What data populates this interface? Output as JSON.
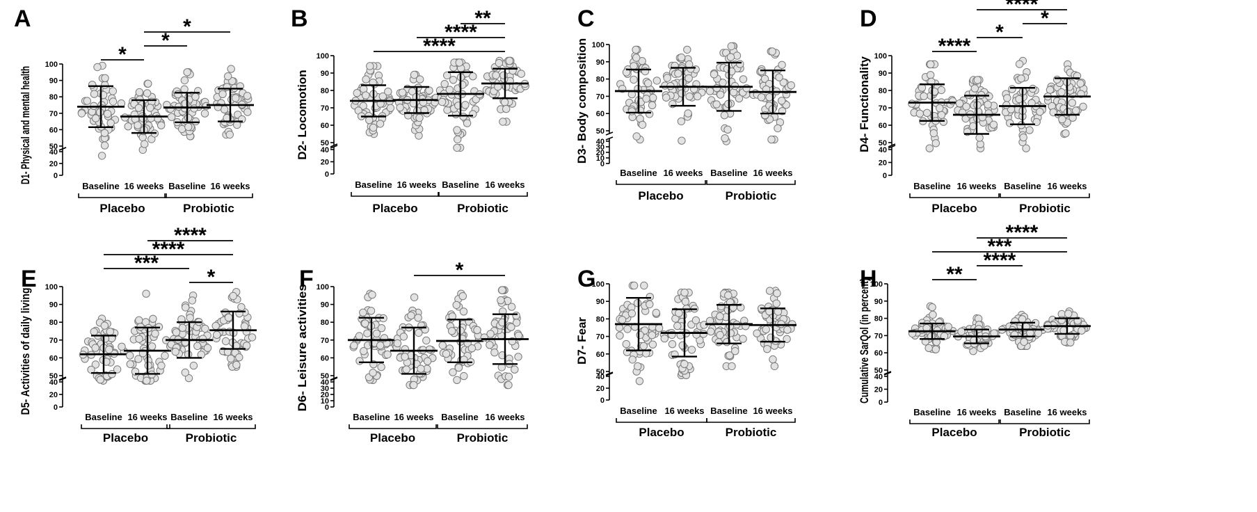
{
  "figure": {
    "groups": [
      "Placebo",
      "Probiotic"
    ],
    "timepoints": [
      "Baseline",
      "16 weeks"
    ]
  },
  "chart_data": [
    {
      "panel": "A",
      "type": "scatter",
      "ylabel": "D1- Physical and mental health",
      "yticks_low": [
        0,
        20,
        40
      ],
      "yticks_high": [
        50,
        60,
        70,
        80,
        90,
        100
      ],
      "ylim": [
        0,
        100
      ],
      "columns": [
        {
          "name": "Baseline",
          "group": "Placebo",
          "mean": 74,
          "sd": 12.5,
          "min": 33,
          "max": 99
        },
        {
          "name": "16 weeks",
          "group": "Placebo",
          "mean": 68,
          "sd": 10,
          "min": 43,
          "max": 88
        },
        {
          "name": "Baseline",
          "group": "Probiotic",
          "mean": 73.5,
          "sd": 9,
          "min": 56,
          "max": 95
        },
        {
          "name": "16 weeks",
          "group": "Probiotic",
          "mean": 75,
          "sd": 10,
          "min": 57,
          "max": 97
        }
      ],
      "significance": [
        {
          "from": 0,
          "to": 1,
          "label": "*"
        },
        {
          "from": 1,
          "to": 2,
          "label": "*"
        },
        {
          "from": 1,
          "to": 3,
          "label": "*"
        }
      ]
    },
    {
      "panel": "B",
      "type": "scatter",
      "ylabel": "D2- Locomotion",
      "yticks_low": [
        0,
        20,
        40
      ],
      "yticks_high": [
        50,
        60,
        70,
        80,
        90,
        100
      ],
      "ylim": [
        0,
        100
      ],
      "columns": [
        {
          "name": "Baseline",
          "group": "Placebo",
          "mean": 74,
          "sd": 9,
          "min": 55,
          "max": 94
        },
        {
          "name": "16 weeks",
          "group": "Placebo",
          "mean": 74.5,
          "sd": 7.5,
          "min": 54,
          "max": 89
        },
        {
          "name": "Baseline",
          "group": "Probiotic",
          "mean": 78,
          "sd": 12.5,
          "min": 43,
          "max": 96
        },
        {
          "name": "16 weeks",
          "group": "Probiotic",
          "mean": 84,
          "sd": 8.5,
          "min": 62,
          "max": 97
        }
      ],
      "significance": [
        {
          "from": 0,
          "to": 3,
          "label": "****",
          "thin": true
        },
        {
          "from": 1,
          "to": 3,
          "label": "****"
        },
        {
          "from": 2,
          "to": 3,
          "label": "**"
        }
      ]
    },
    {
      "panel": "C",
      "type": "scatter",
      "ylabel": "D3- Body composition",
      "yticks_low": [
        0,
        10,
        20,
        30,
        40
      ],
      "yticks_high": [
        50,
        60,
        70,
        80,
        90,
        100
      ],
      "ylim": [
        0,
        100
      ],
      "columns": [
        {
          "name": "Baseline",
          "group": "Placebo",
          "mean": 73,
          "sd": 12.5,
          "min": 43,
          "max": 97
        },
        {
          "name": "16 weeks",
          "group": "Placebo",
          "mean": 75.5,
          "sd": 11,
          "min": 41,
          "max": 97
        },
        {
          "name": "Baseline",
          "group": "Probiotic",
          "mean": 75.5,
          "sd": 14,
          "min": 40,
          "max": 99
        },
        {
          "name": "16 weeks",
          "group": "Probiotic",
          "mean": 72.5,
          "sd": 12.5,
          "min": 43,
          "max": 96
        }
      ],
      "significance": []
    },
    {
      "panel": "D",
      "type": "scatter",
      "ylabel": "D4- Functionality",
      "yticks_low": [
        0,
        20,
        40
      ],
      "yticks_high": [
        50,
        60,
        70,
        80,
        90,
        100
      ],
      "ylim": [
        0,
        100
      ],
      "columns": [
        {
          "name": "Baseline",
          "group": "Placebo",
          "mean": 73,
          "sd": 10.5,
          "min": 42,
          "max": 95
        },
        {
          "name": "16 weeks",
          "group": "Placebo",
          "mean": 66,
          "sd": 11,
          "min": 42,
          "max": 86
        },
        {
          "name": "Baseline",
          "group": "Probiotic",
          "mean": 71,
          "sd": 10.5,
          "min": 42,
          "max": 97
        },
        {
          "name": "16 weeks",
          "group": "Probiotic",
          "mean": 76.5,
          "sd": 10.5,
          "min": 55,
          "max": 95
        }
      ],
      "significance": [
        {
          "from": 0,
          "to": 1,
          "label": "****"
        },
        {
          "from": 1,
          "to": 2,
          "label": "*"
        },
        {
          "from": 2,
          "to": 3,
          "label": "*"
        },
        {
          "from": 1,
          "to": 3,
          "label": "****"
        }
      ]
    },
    {
      "panel": "E",
      "type": "scatter",
      "ylabel": "D5- Activities of daily living",
      "yticks_low": [
        0,
        20,
        40
      ],
      "yticks_high": [
        50,
        60,
        70,
        80,
        90,
        100
      ],
      "ylim": [
        0,
        100
      ],
      "columns": [
        {
          "name": "Baseline",
          "group": "Placebo",
          "mean": 62,
          "sd": 10.5,
          "min": 42,
          "max": 82
        },
        {
          "name": "16 weeks",
          "group": "Placebo",
          "mean": 64,
          "sd": 13,
          "min": 42,
          "max": 96
        },
        {
          "name": "Baseline",
          "group": "Probiotic",
          "mean": 70,
          "sd": 10,
          "min": 46,
          "max": 95
        },
        {
          "name": "16 weeks",
          "group": "Probiotic",
          "mean": 75.5,
          "sd": 10.5,
          "min": 55,
          "max": 97
        }
      ],
      "significance": [
        {
          "from": 2,
          "to": 3,
          "label": "*",
          "note": "shown between 16 weeks Placebo and Baseline Probiotic"
        },
        {
          "from": 0,
          "to": 2,
          "label": "***"
        },
        {
          "from": 0,
          "to": 3,
          "label": "****"
        },
        {
          "from": 1,
          "to": 3,
          "label": "****"
        }
      ]
    },
    {
      "panel": "F",
      "type": "scatter",
      "ylabel": "D6- Leisure activities",
      "yticks_low": [
        0,
        10,
        20,
        30,
        40
      ],
      "yticks_high": [
        50,
        60,
        70,
        80,
        90,
        100
      ],
      "ylim": [
        0,
        100
      ],
      "columns": [
        {
          "name": "Baseline",
          "group": "Placebo",
          "mean": 70,
          "sd": 12.5,
          "min": 43,
          "max": 96
        },
        {
          "name": "16 weeks",
          "group": "Placebo",
          "mean": 64,
          "sd": 13,
          "min": 35,
          "max": 94
        },
        {
          "name": "Baseline",
          "group": "Probiotic",
          "mean": 69.5,
          "sd": 12,
          "min": 43,
          "max": 96
        },
        {
          "name": "16 weeks",
          "group": "Probiotic",
          "mean": 70.5,
          "sd": 14,
          "min": 35,
          "max": 98
        }
      ],
      "significance": [
        {
          "from": 1,
          "to": 3,
          "label": "*"
        }
      ]
    },
    {
      "panel": "G",
      "type": "scatter",
      "ylabel": "D7- Fear",
      "yticks_low": [
        0,
        20,
        40
      ],
      "yticks_high": [
        50,
        60,
        70,
        80,
        90,
        100
      ],
      "ylim": [
        0,
        100
      ],
      "columns": [
        {
          "name": "Baseline",
          "group": "Placebo",
          "mean": 77,
          "sd": 15,
          "min": 32,
          "max": 99
        },
        {
          "name": "16 weeks",
          "group": "Placebo",
          "mean": 72,
          "sd": 13.5,
          "min": 42,
          "max": 95
        },
        {
          "name": "Baseline",
          "group": "Probiotic",
          "mean": 77,
          "sd": 11,
          "min": 53,
          "max": 95
        },
        {
          "name": "16 weeks",
          "group": "Probiotic",
          "mean": 76.5,
          "sd": 9.5,
          "min": 53,
          "max": 96
        }
      ],
      "significance": []
    },
    {
      "panel": "H",
      "type": "scatter",
      "ylabel": "Cumulative SarQol (in percent)",
      "yticks_low": [
        0,
        20,
        40
      ],
      "yticks_high": [
        50,
        60,
        70,
        80,
        90,
        100
      ],
      "ylim": [
        0,
        100
      ],
      "columns": [
        {
          "name": "Baseline",
          "group": "Placebo",
          "mean": 72.5,
          "sd": 4.5,
          "min": 62,
          "max": 87
        },
        {
          "name": "16 weeks",
          "group": "Placebo",
          "mean": 69.5,
          "sd": 4,
          "min": 61,
          "max": 80
        },
        {
          "name": "Baseline",
          "group": "Probiotic",
          "mean": 73.5,
          "sd": 4,
          "min": 64,
          "max": 82
        },
        {
          "name": "16 weeks",
          "group": "Probiotic",
          "mean": 75.5,
          "sd": 4.5,
          "min": 66,
          "max": 84
        }
      ],
      "significance": [
        {
          "from": 0,
          "to": 1,
          "label": "**"
        },
        {
          "from": 1,
          "to": 2,
          "label": "****"
        },
        {
          "from": 0,
          "to": 3,
          "label": "***"
        },
        {
          "from": 1,
          "to": 3,
          "label": "****"
        }
      ]
    }
  ]
}
